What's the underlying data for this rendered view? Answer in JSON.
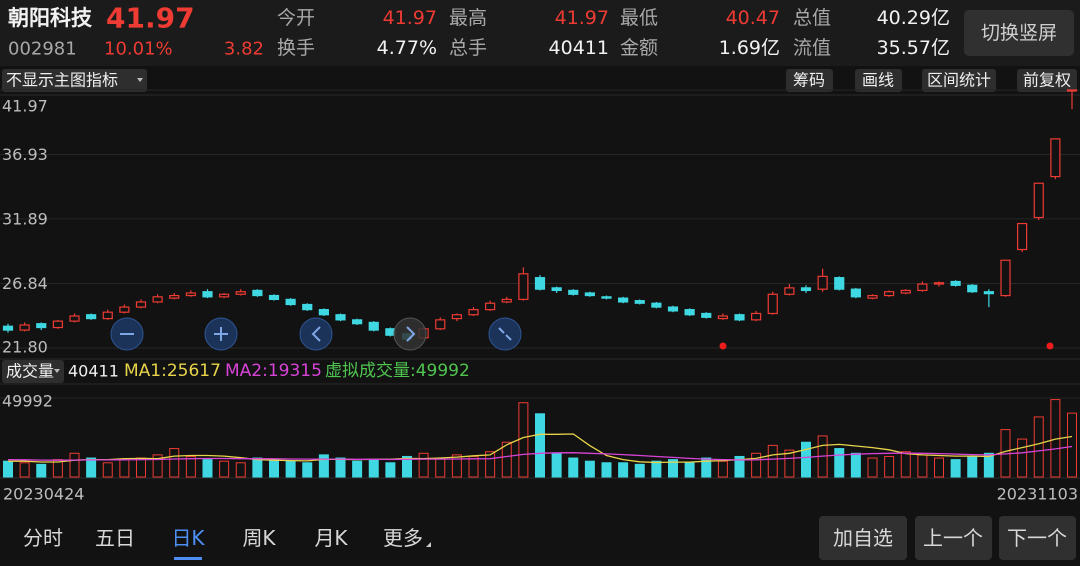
{
  "header": {
    "name": "朝阳科技",
    "price": "41.97",
    "code": "002981",
    "change_pct": "10.01%",
    "change": "3.82",
    "stats": [
      {
        "label": "今开",
        "value": "41.97"
      },
      {
        "label": "最高",
        "value": "41.97"
      },
      {
        "label": "最低",
        "value": "40.47"
      },
      {
        "label": "总值",
        "value": "40.29亿"
      },
      {
        "label": "换手",
        "value": "4.77%"
      },
      {
        "label": "总手",
        "value": "40411"
      },
      {
        "label": "金额",
        "value": "1.69亿"
      },
      {
        "label": "流值",
        "value": "35.57亿"
      }
    ],
    "toggle_button": "切换竖屏"
  },
  "toolbar": {
    "indicator": "不显示主图指标",
    "buttons": [
      "筹码",
      "画线",
      "区间统计",
      "前复权"
    ]
  },
  "chart_data": [
    {
      "type": "candlestick",
      "up_color": "#ee3b33",
      "down_color": "#3fd8e2",
      "grid": true,
      "ylim": [
        21.8,
        41.97
      ],
      "yticks": [
        41.97,
        36.93,
        31.89,
        26.84,
        {
          "value": 21.8,
          "label": "21.80"
        }
      ],
      "open": [
        23.5,
        23.2,
        23.7,
        23.4,
        23.9,
        24.4,
        24.1,
        24.6,
        25.0,
        25.4,
        25.7,
        25.9,
        26.2,
        25.8,
        26.0,
        26.3,
        25.9,
        25.6,
        25.2,
        24.8,
        24.4,
        24.0,
        23.8,
        23.3,
        22.9,
        22.6,
        23.3,
        24.1,
        24.4,
        24.8,
        25.4,
        25.6,
        27.3,
        26.5,
        26.3,
        26.1,
        25.8,
        25.7,
        25.5,
        25.3,
        25.0,
        24.8,
        24.5,
        24.1,
        24.4,
        24.0,
        24.5,
        26.0,
        26.5,
        26.4,
        27.3,
        26.4,
        25.7,
        25.9,
        26.1,
        26.3,
        26.8,
        27.0,
        26.7,
        26.2,
        25.9,
        29.5,
        32.0,
        35.2,
        41.97
      ],
      "high": [
        23.7,
        23.8,
        23.8,
        24.0,
        24.5,
        24.5,
        24.8,
        25.2,
        25.6,
        26.0,
        26.1,
        26.3,
        26.4,
        26.1,
        26.4,
        26.4,
        26.0,
        25.7,
        25.3,
        24.9,
        24.5,
        24.1,
        23.9,
        23.4,
        23.0,
        23.5,
        24.2,
        24.5,
        25.0,
        25.5,
        25.8,
        28.1,
        27.5,
        26.6,
        26.4,
        26.2,
        25.9,
        25.8,
        25.6,
        25.4,
        25.1,
        24.9,
        24.6,
        24.5,
        24.5,
        24.7,
        26.2,
        26.8,
        26.7,
        28.0,
        27.4,
        26.5,
        26.0,
        26.3,
        26.4,
        27.0,
        27.0,
        27.1,
        26.8,
        26.4,
        28.66,
        31.53,
        34.68,
        38.15,
        41.97
      ],
      "low": [
        23.0,
        23.1,
        23.2,
        23.3,
        23.8,
        24.0,
        24.0,
        24.5,
        24.9,
        25.3,
        25.6,
        25.8,
        25.7,
        25.7,
        25.9,
        25.8,
        25.5,
        25.1,
        24.7,
        24.3,
        23.9,
        23.6,
        23.1,
        22.7,
        22.3,
        22.5,
        23.2,
        23.9,
        24.3,
        24.7,
        25.3,
        25.5,
        26.3,
        26.1,
        25.9,
        25.8,
        25.6,
        25.3,
        25.2,
        24.9,
        24.6,
        24.3,
        24.1,
        24.0,
        23.9,
        23.9,
        24.4,
        25.9,
        26.1,
        26.2,
        26.3,
        25.7,
        25.6,
        25.8,
        26.0,
        26.2,
        26.6,
        26.6,
        26.1,
        25.0,
        25.8,
        29.3,
        31.8,
        35.0,
        40.47
      ],
      "close": [
        23.2,
        23.6,
        23.4,
        23.9,
        24.3,
        24.1,
        24.6,
        25.0,
        25.4,
        25.8,
        25.9,
        26.1,
        25.8,
        26.0,
        26.2,
        25.9,
        25.6,
        25.2,
        24.8,
        24.4,
        24.0,
        23.7,
        23.2,
        22.8,
        22.5,
        23.3,
        24.0,
        24.4,
        24.8,
        25.3,
        25.6,
        27.6,
        26.4,
        26.3,
        26.0,
        25.9,
        25.7,
        25.4,
        25.3,
        25.0,
        24.7,
        24.4,
        24.2,
        24.3,
        24.0,
        24.5,
        26.0,
        26.5,
        26.3,
        27.4,
        26.4,
        25.8,
        25.9,
        26.2,
        26.3,
        26.8,
        26.9,
        26.7,
        26.2,
        26.05,
        28.66,
        31.53,
        34.68,
        38.15,
        41.97
      ]
    },
    {
      "type": "bar",
      "title": "成交量",
      "current": "40411",
      "virtual_volume": "虚拟成交量:49992",
      "virtual_color": "#4fc44f",
      "ylim": [
        0,
        49992
      ],
      "yticks": [
        49992
      ],
      "x_labels": [
        "20230424",
        "20231103"
      ],
      "values": [
        10000,
        9000,
        8000,
        11000,
        15000,
        12000,
        9000,
        11000,
        12000,
        14000,
        18000,
        13000,
        11000,
        10000,
        9000,
        12000,
        11000,
        10000,
        9000,
        14000,
        12000,
        10000,
        11000,
        9000,
        13000,
        15000,
        12000,
        14000,
        13000,
        16000,
        22000,
        47000,
        40000,
        15000,
        12000,
        10000,
        9000,
        9000,
        8000,
        10000,
        11000,
        9000,
        12000,
        10000,
        13000,
        15000,
        20000,
        17000,
        22000,
        26000,
        18000,
        15000,
        12000,
        13000,
        16000,
        14000,
        12000,
        11000,
        13000,
        15000,
        30000,
        24000,
        38000,
        49000,
        40411
      ],
      "series": [
        {
          "name": "MA1:25617",
          "color": "#e8d44a",
          "values": [
            10000,
            10000,
            9500,
            9500,
            10600,
            11000,
            11000,
            11600,
            11800,
            11600,
            13200,
            13600,
            13600,
            13200,
            12200,
            11000,
            10600,
            10400,
            10200,
            11200,
            11200,
            11000,
            11200,
            11200,
            11800,
            11600,
            12000,
            12600,
            13400,
            14000,
            20400,
            25000,
            27000,
            27000,
            27200,
            19800,
            13600,
            11000,
            9600,
            9200,
            9400,
            9400,
            10000,
            10400,
            11000,
            11800,
            14000,
            15000,
            17400,
            20000,
            20600,
            19600,
            18600,
            17200,
            14800,
            14000,
            13600,
            13200,
            13200,
            13000,
            16200,
            18600,
            21000,
            24000,
            25617
          ]
        },
        {
          "name": "MA2:19315",
          "color": "#d844d8",
          "values": [
            11000,
            10900,
            10700,
            10600,
            10700,
            10800,
            10800,
            10900,
            11000,
            11100,
            11400,
            11600,
            11700,
            11700,
            11600,
            11600,
            11500,
            11400,
            11300,
            11300,
            11300,
            11200,
            11200,
            11100,
            11200,
            11300,
            11300,
            11400,
            11500,
            11600,
            13000,
            14300,
            15000,
            15300,
            15400,
            15000,
            14600,
            14200,
            13600,
            13000,
            12400,
            11800,
            11300,
            11000,
            10800,
            10900,
            11300,
            11800,
            12400,
            13200,
            13900,
            14400,
            14800,
            15000,
            15100,
            15000,
            14800,
            14500,
            14200,
            14000,
            14600,
            15300,
            16500,
            17800,
            19315
          ]
        }
      ]
    }
  ],
  "tabs": {
    "items": [
      "分时",
      "五日",
      "日K",
      "周K",
      "月K",
      "更多"
    ],
    "active": 2
  },
  "buttons": [
    "加自选",
    "上一个",
    "下一个"
  ]
}
